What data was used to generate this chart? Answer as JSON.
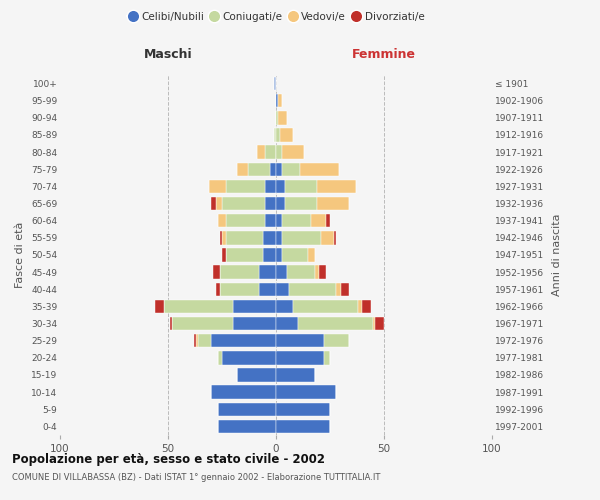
{
  "age_groups_bottom_to_top": [
    "0-4",
    "5-9",
    "10-14",
    "15-19",
    "20-24",
    "25-29",
    "30-34",
    "35-39",
    "40-44",
    "45-49",
    "50-54",
    "55-59",
    "60-64",
    "65-69",
    "70-74",
    "75-79",
    "80-84",
    "85-89",
    "90-94",
    "95-99",
    "100+"
  ],
  "birth_years_bottom_to_top": [
    "1997-2001",
    "1992-1996",
    "1987-1991",
    "1982-1986",
    "1977-1981",
    "1972-1976",
    "1967-1971",
    "1962-1966",
    "1957-1961",
    "1952-1956",
    "1947-1951",
    "1942-1946",
    "1937-1941",
    "1932-1936",
    "1927-1931",
    "1922-1926",
    "1917-1921",
    "1912-1916",
    "1907-1911",
    "1902-1906",
    "≤ 1901"
  ],
  "males": {
    "celibi": [
      27,
      27,
      30,
      18,
      25,
      30,
      20,
      20,
      8,
      8,
      6,
      6,
      5,
      5,
      5,
      3,
      0,
      0,
      0,
      0,
      1
    ],
    "coniugati": [
      0,
      0,
      0,
      0,
      2,
      6,
      28,
      32,
      18,
      18,
      17,
      17,
      18,
      20,
      18,
      10,
      5,
      1,
      0,
      0,
      0
    ],
    "vedovi": [
      0,
      0,
      0,
      0,
      0,
      1,
      0,
      0,
      0,
      0,
      0,
      2,
      4,
      3,
      8,
      5,
      4,
      0,
      0,
      0,
      0
    ],
    "divorziati": [
      0,
      0,
      0,
      0,
      0,
      1,
      1,
      4,
      2,
      3,
      2,
      1,
      0,
      2,
      0,
      0,
      0,
      0,
      0,
      0,
      0
    ]
  },
  "females": {
    "nubili": [
      25,
      25,
      28,
      18,
      22,
      22,
      10,
      8,
      6,
      5,
      3,
      3,
      3,
      4,
      4,
      3,
      0,
      0,
      0,
      1,
      0
    ],
    "coniugate": [
      0,
      0,
      0,
      0,
      3,
      12,
      35,
      30,
      22,
      13,
      12,
      18,
      13,
      15,
      15,
      8,
      3,
      2,
      1,
      0,
      0
    ],
    "vedove": [
      0,
      0,
      0,
      0,
      0,
      0,
      1,
      2,
      2,
      2,
      3,
      6,
      7,
      15,
      18,
      18,
      10,
      6,
      4,
      2,
      0
    ],
    "divorziate": [
      0,
      0,
      0,
      0,
      0,
      0,
      4,
      4,
      4,
      3,
      0,
      1,
      2,
      0,
      0,
      0,
      0,
      0,
      0,
      0,
      0
    ]
  },
  "colors": {
    "celibi_nubili": "#4472C4",
    "coniugati": "#C5D9A0",
    "vedovi": "#F5C77E",
    "divorziati": "#C0302A"
  },
  "title": "Popolazione per età, sesso e stato civile - 2002",
  "subtitle": "COMUNE DI VILLABASSA (BZ) - Dati ISTAT 1° gennaio 2002 - Elaborazione TUTTITALIA.IT",
  "xlabel_left": "Maschi",
  "xlabel_right": "Femmine",
  "ylabel_left": "Fasce di età",
  "ylabel_right": "Anni di nascita",
  "xlim": 100,
  "background_color": "#f5f5f5",
  "grid_color": "#cccccc"
}
